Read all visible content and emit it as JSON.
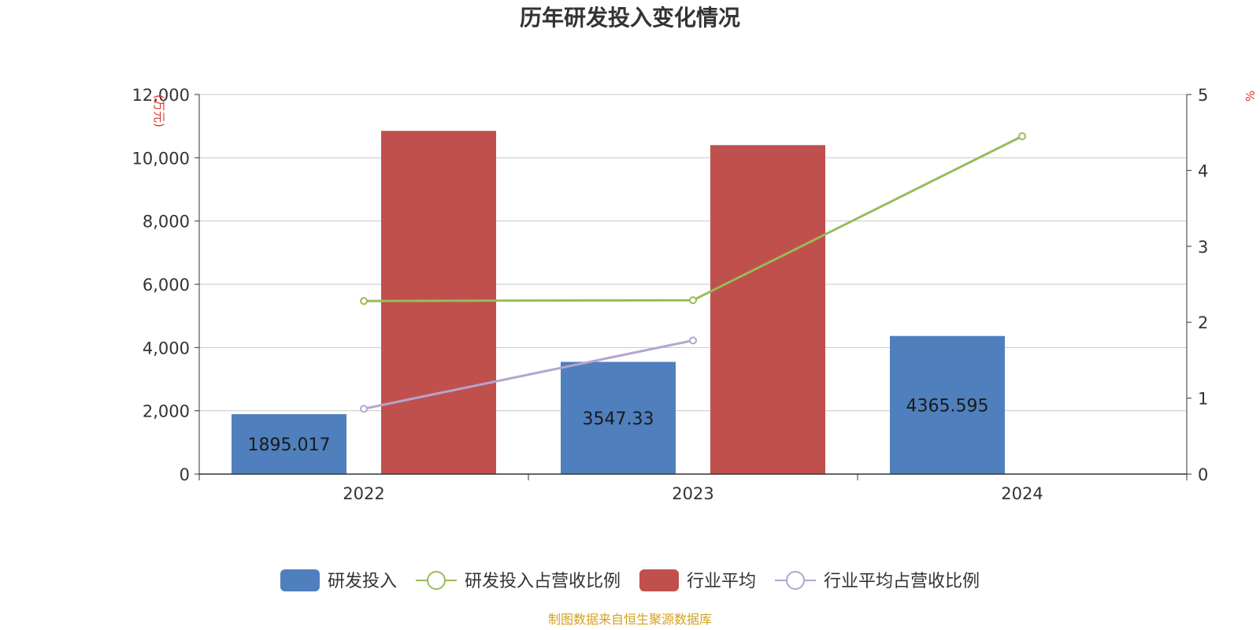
{
  "chart_data": {
    "type": "bar",
    "title": "历年研发投入变化情况",
    "categories": [
      "2022",
      "2023",
      "2024"
    ],
    "left_axis": {
      "unit": "(万元)",
      "ylim": [
        0,
        12000
      ],
      "ticks": [
        0,
        2000,
        4000,
        6000,
        8000,
        10000,
        12000
      ],
      "tick_labels": [
        "0",
        "2,000",
        "4,000",
        "6,000",
        "8,000",
        "10,000",
        "12,000"
      ]
    },
    "right_axis": {
      "unit": "%",
      "ylim": [
        0,
        5
      ],
      "ticks": [
        0,
        1,
        2,
        3,
        4,
        5
      ],
      "tick_labels": [
        "0",
        "1",
        "2",
        "3",
        "4",
        "5"
      ]
    },
    "series": [
      {
        "name": "研发投入",
        "type": "bar",
        "axis": "left",
        "color": "#4f7fbd",
        "values": [
          1895.017,
          3547.33,
          4365.595
        ],
        "labels": [
          "1895.017",
          "3547.33",
          "4365.595"
        ]
      },
      {
        "name": "研发投入占营收比例",
        "type": "line",
        "axis": "right",
        "color": "#9bbb59",
        "values": [
          2.28,
          2.29,
          4.45
        ]
      },
      {
        "name": "行业平均",
        "type": "bar",
        "axis": "left",
        "color": "#c0504d",
        "values": [
          10850,
          10400,
          null
        ]
      },
      {
        "name": "行业平均占营收比例",
        "type": "line",
        "axis": "right",
        "color": "#b3a5cf",
        "values": [
          0.86,
          1.76,
          null
        ]
      }
    ],
    "grid": true,
    "legend_position": "bottom",
    "source": "制图数据来自恒生聚源数据库"
  }
}
